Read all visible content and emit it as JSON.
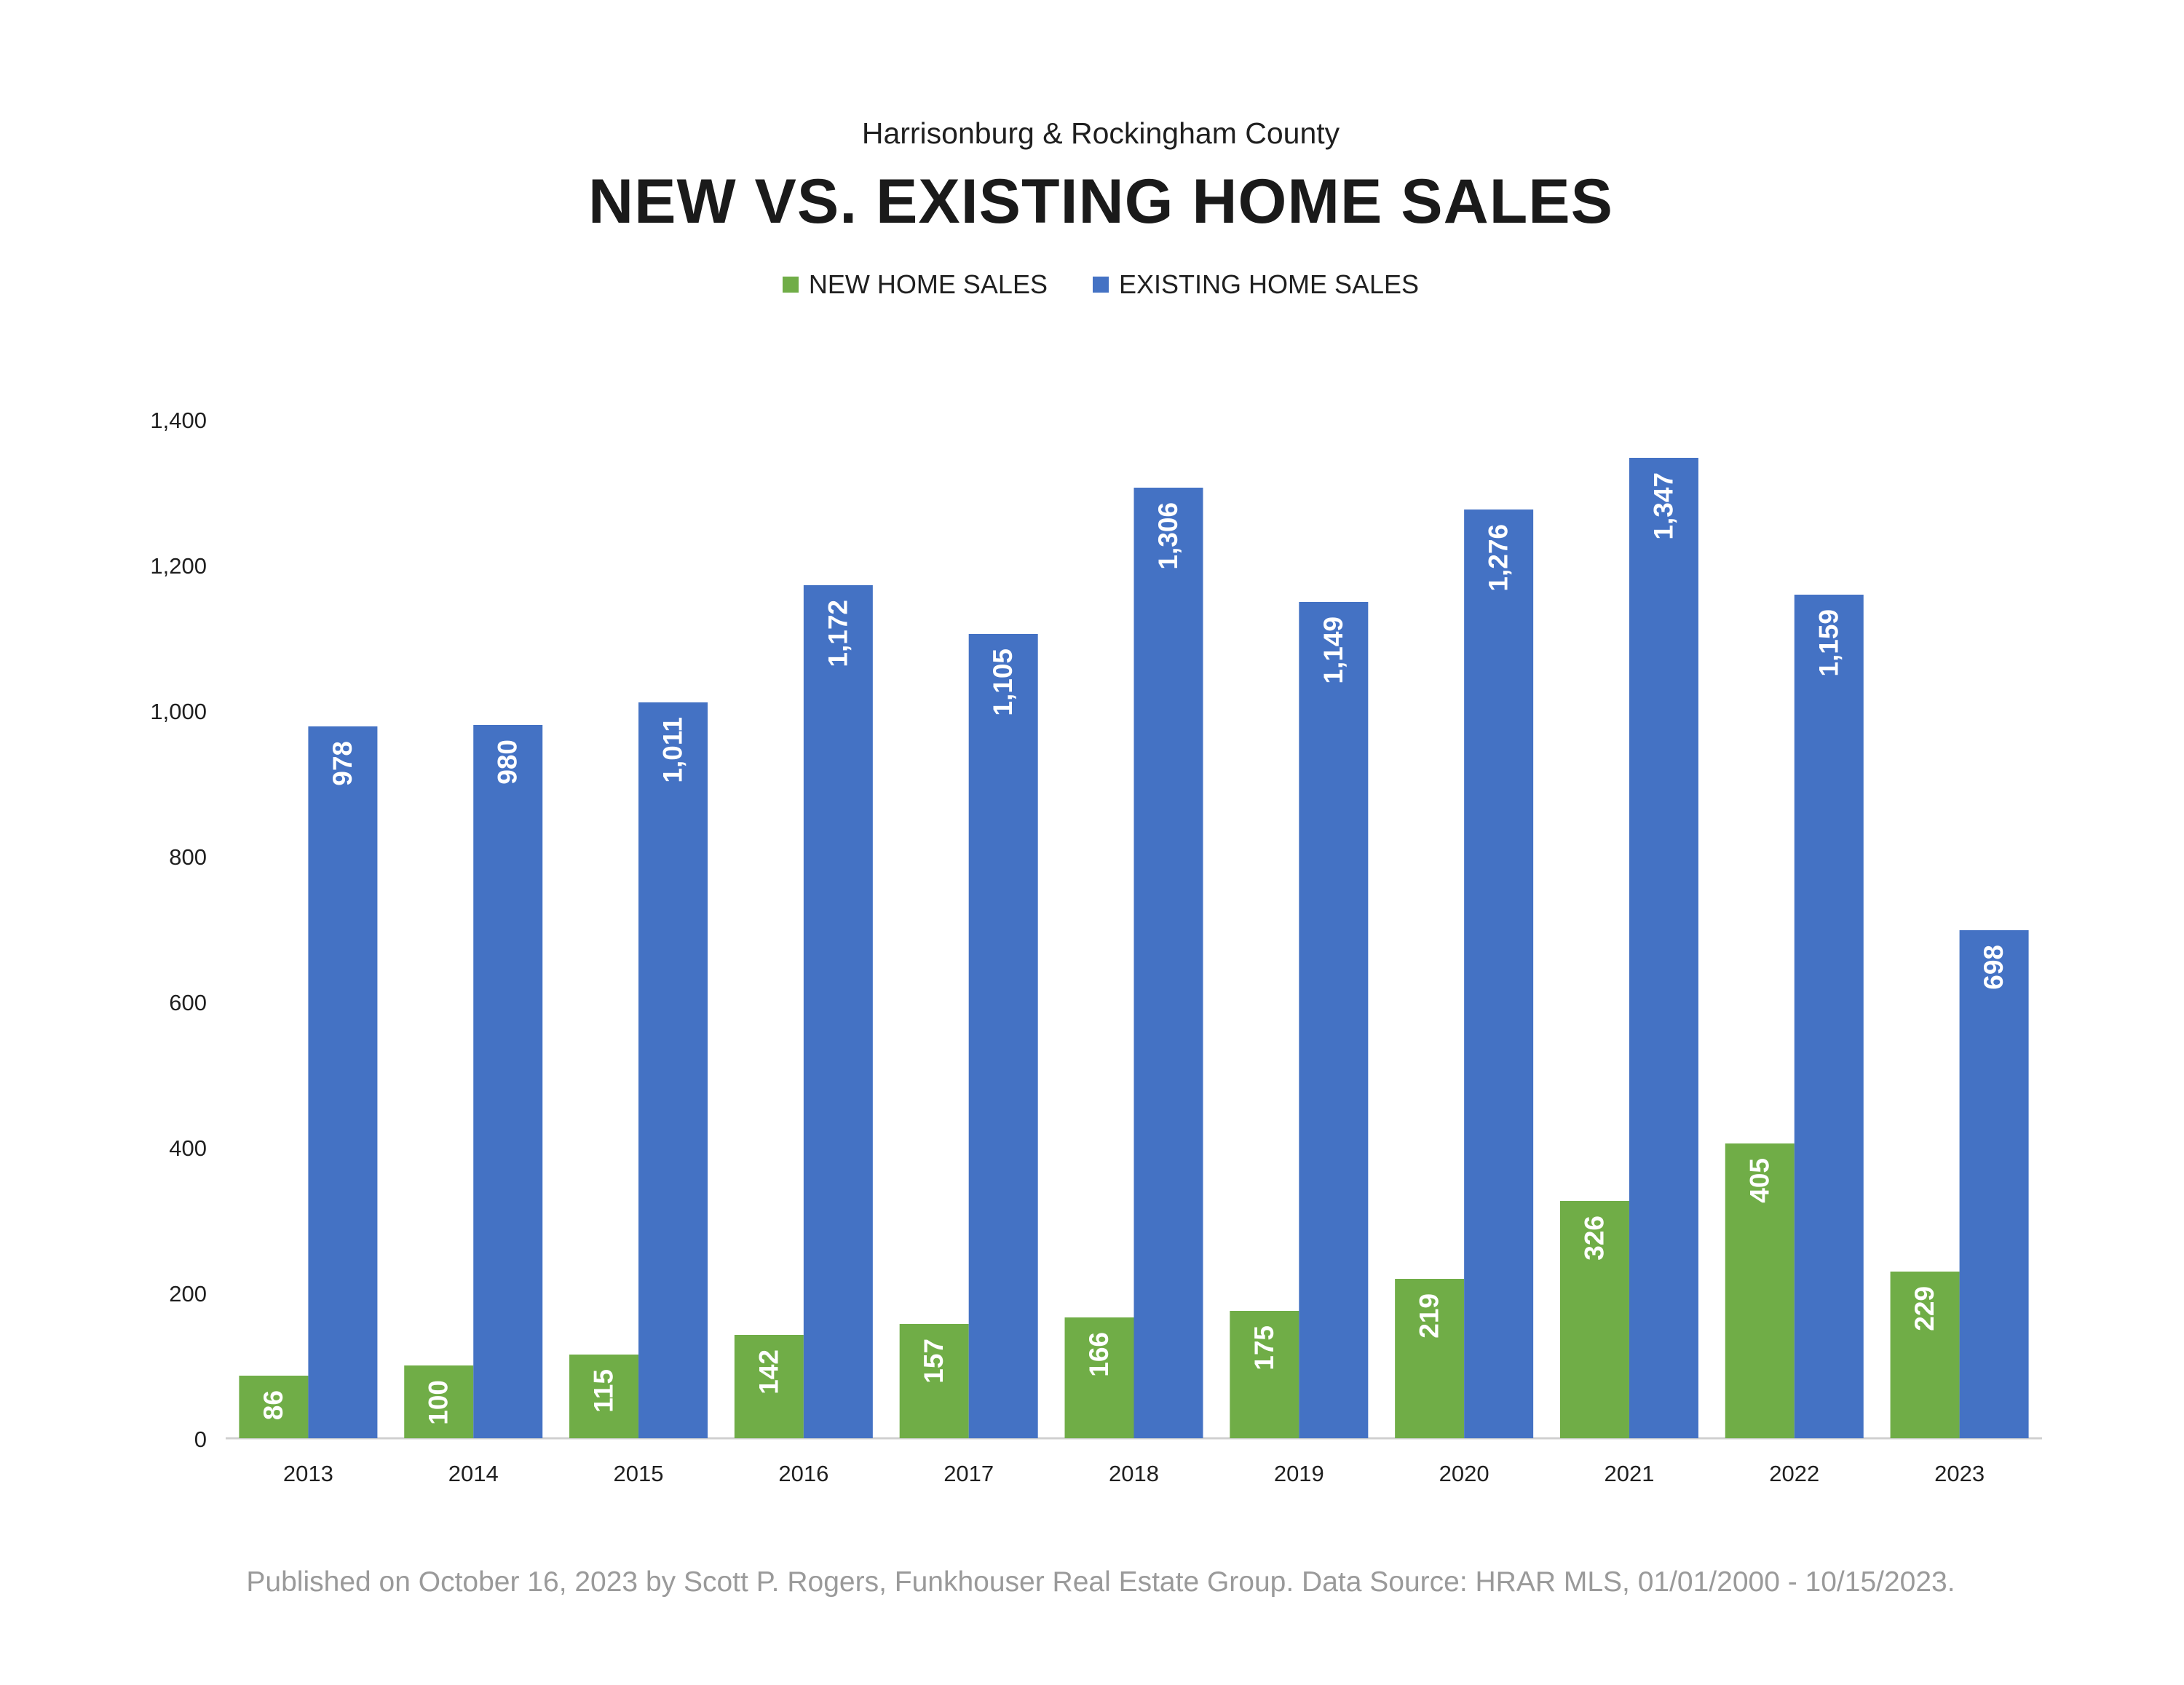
{
  "subtitle": "Harrisonburg & Rockingham County",
  "title": "NEW VS. EXISTING HOME SALES",
  "footer": "Published on October 16, 2023 by Scott P. Rogers, Funkhouser Real Estate Group. Data Source: HRAR MLS, 01/01/2000 - 10/15/2023.",
  "colors": {
    "new": "#70ad47",
    "existing": "#4472c4",
    "axis_text": "#1f1f1f",
    "label_text": "#ffffff"
  },
  "chart_data": {
    "type": "bar",
    "categories": [
      "2013",
      "2014",
      "2015",
      "2016",
      "2017",
      "2018",
      "2019",
      "2020",
      "2021",
      "2022",
      "2023"
    ],
    "series": [
      {
        "name": "NEW HOME SALES",
        "values": [
          86,
          100,
          115,
          142,
          157,
          166,
          175,
          219,
          326,
          405,
          229
        ],
        "data_labels": [
          "86",
          "100",
          "115",
          "142",
          "157",
          "166",
          "175",
          "219",
          "326",
          "405",
          "229"
        ]
      },
      {
        "name": "EXISTING HOME SALES",
        "values": [
          978,
          980,
          1011,
          1172,
          1105,
          1306,
          1149,
          1276,
          1347,
          1159,
          698
        ],
        "data_labels": [
          "978",
          "980",
          "1,011",
          "1,172",
          "1,105",
          "1,306",
          "1,149",
          "1,276",
          "1,347",
          "1,159",
          "698"
        ]
      }
    ],
    "ylim": [
      0,
      1400
    ],
    "yticks": [
      0,
      200,
      400,
      600,
      800,
      1000,
      1200,
      1400
    ],
    "ytick_labels": [
      "0",
      "200",
      "400",
      "600",
      "800",
      "1,000",
      "1,200",
      "1,400"
    ],
    "legend": "top-center",
    "grid": false,
    "data_label_orientation": "vertical-inside-top"
  }
}
